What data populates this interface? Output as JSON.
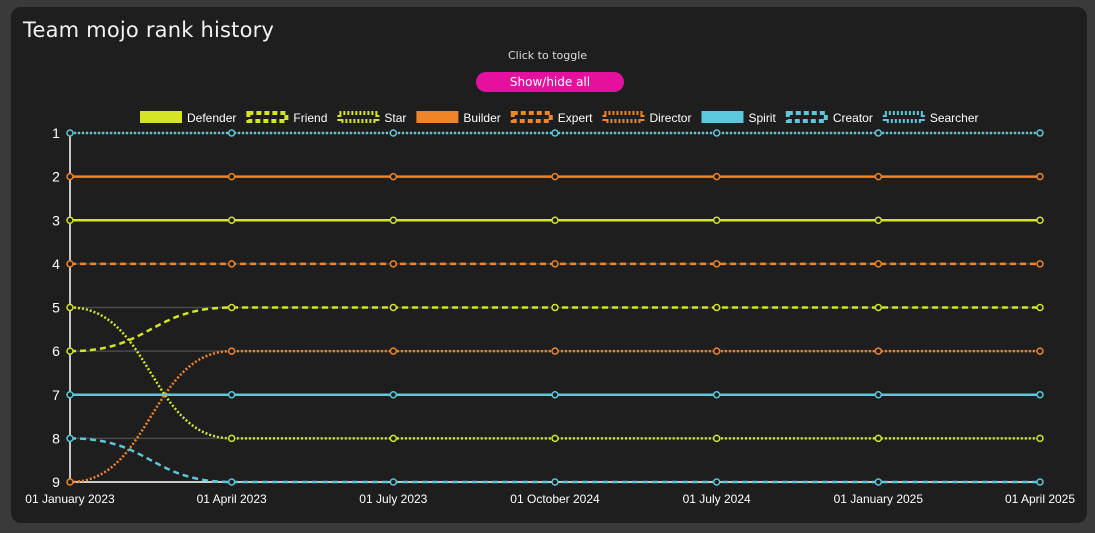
{
  "header": {
    "title": "Team mojo rank history",
    "hint": "Click to toggle",
    "toggle_label": "Show/hide all"
  },
  "colors": {
    "background": "#1e1e1e",
    "yellow": "#d4e524",
    "orange": "#f08428",
    "blue": "#5bc8dc",
    "button": "#e5119e"
  },
  "chart_data": {
    "type": "line",
    "title": "Team mojo rank history",
    "xlabel": "",
    "ylabel": "",
    "y_reversed": true,
    "ylim": [
      1,
      9
    ],
    "y_ticks": [
      "1",
      "2",
      "3",
      "4",
      "5",
      "6",
      "7",
      "8",
      "9"
    ],
    "categories": [
      "01 January 2023",
      "01 April 2023",
      "01 July 2023",
      "01 October 2024",
      "01 July 2024",
      "01 January 2025",
      "01 April 2025"
    ],
    "legend_position": "top-center",
    "series": [
      {
        "name": "Defender",
        "color": "#d4e524",
        "style": "solid",
        "values": [
          3,
          3,
          3,
          3,
          3,
          3,
          3
        ]
      },
      {
        "name": "Friend",
        "color": "#d4e524",
        "style": "dashed",
        "values": [
          6,
          5,
          5,
          5,
          5,
          5,
          5
        ]
      },
      {
        "name": "Star",
        "color": "#d4e524",
        "style": "dotted",
        "values": [
          5,
          8,
          8,
          8,
          8,
          8,
          8
        ]
      },
      {
        "name": "Builder",
        "color": "#f08428",
        "style": "solid",
        "values": [
          2,
          2,
          2,
          2,
          2,
          2,
          2
        ]
      },
      {
        "name": "Expert",
        "color": "#f08428",
        "style": "dashed",
        "values": [
          4,
          4,
          4,
          4,
          4,
          4,
          4
        ]
      },
      {
        "name": "Director",
        "color": "#f08428",
        "style": "dotted",
        "values": [
          9,
          6,
          6,
          6,
          6,
          6,
          6
        ]
      },
      {
        "name": "Spirit",
        "color": "#5bc8dc",
        "style": "solid",
        "values": [
          7,
          7,
          7,
          7,
          7,
          7,
          7
        ]
      },
      {
        "name": "Creator",
        "color": "#5bc8dc",
        "style": "dashed",
        "values": [
          8,
          9,
          9,
          9,
          9,
          9,
          9
        ]
      },
      {
        "name": "Searcher",
        "color": "#5bc8dc",
        "style": "dotted",
        "values": [
          1,
          1,
          1,
          1,
          1,
          1,
          1
        ]
      }
    ]
  }
}
